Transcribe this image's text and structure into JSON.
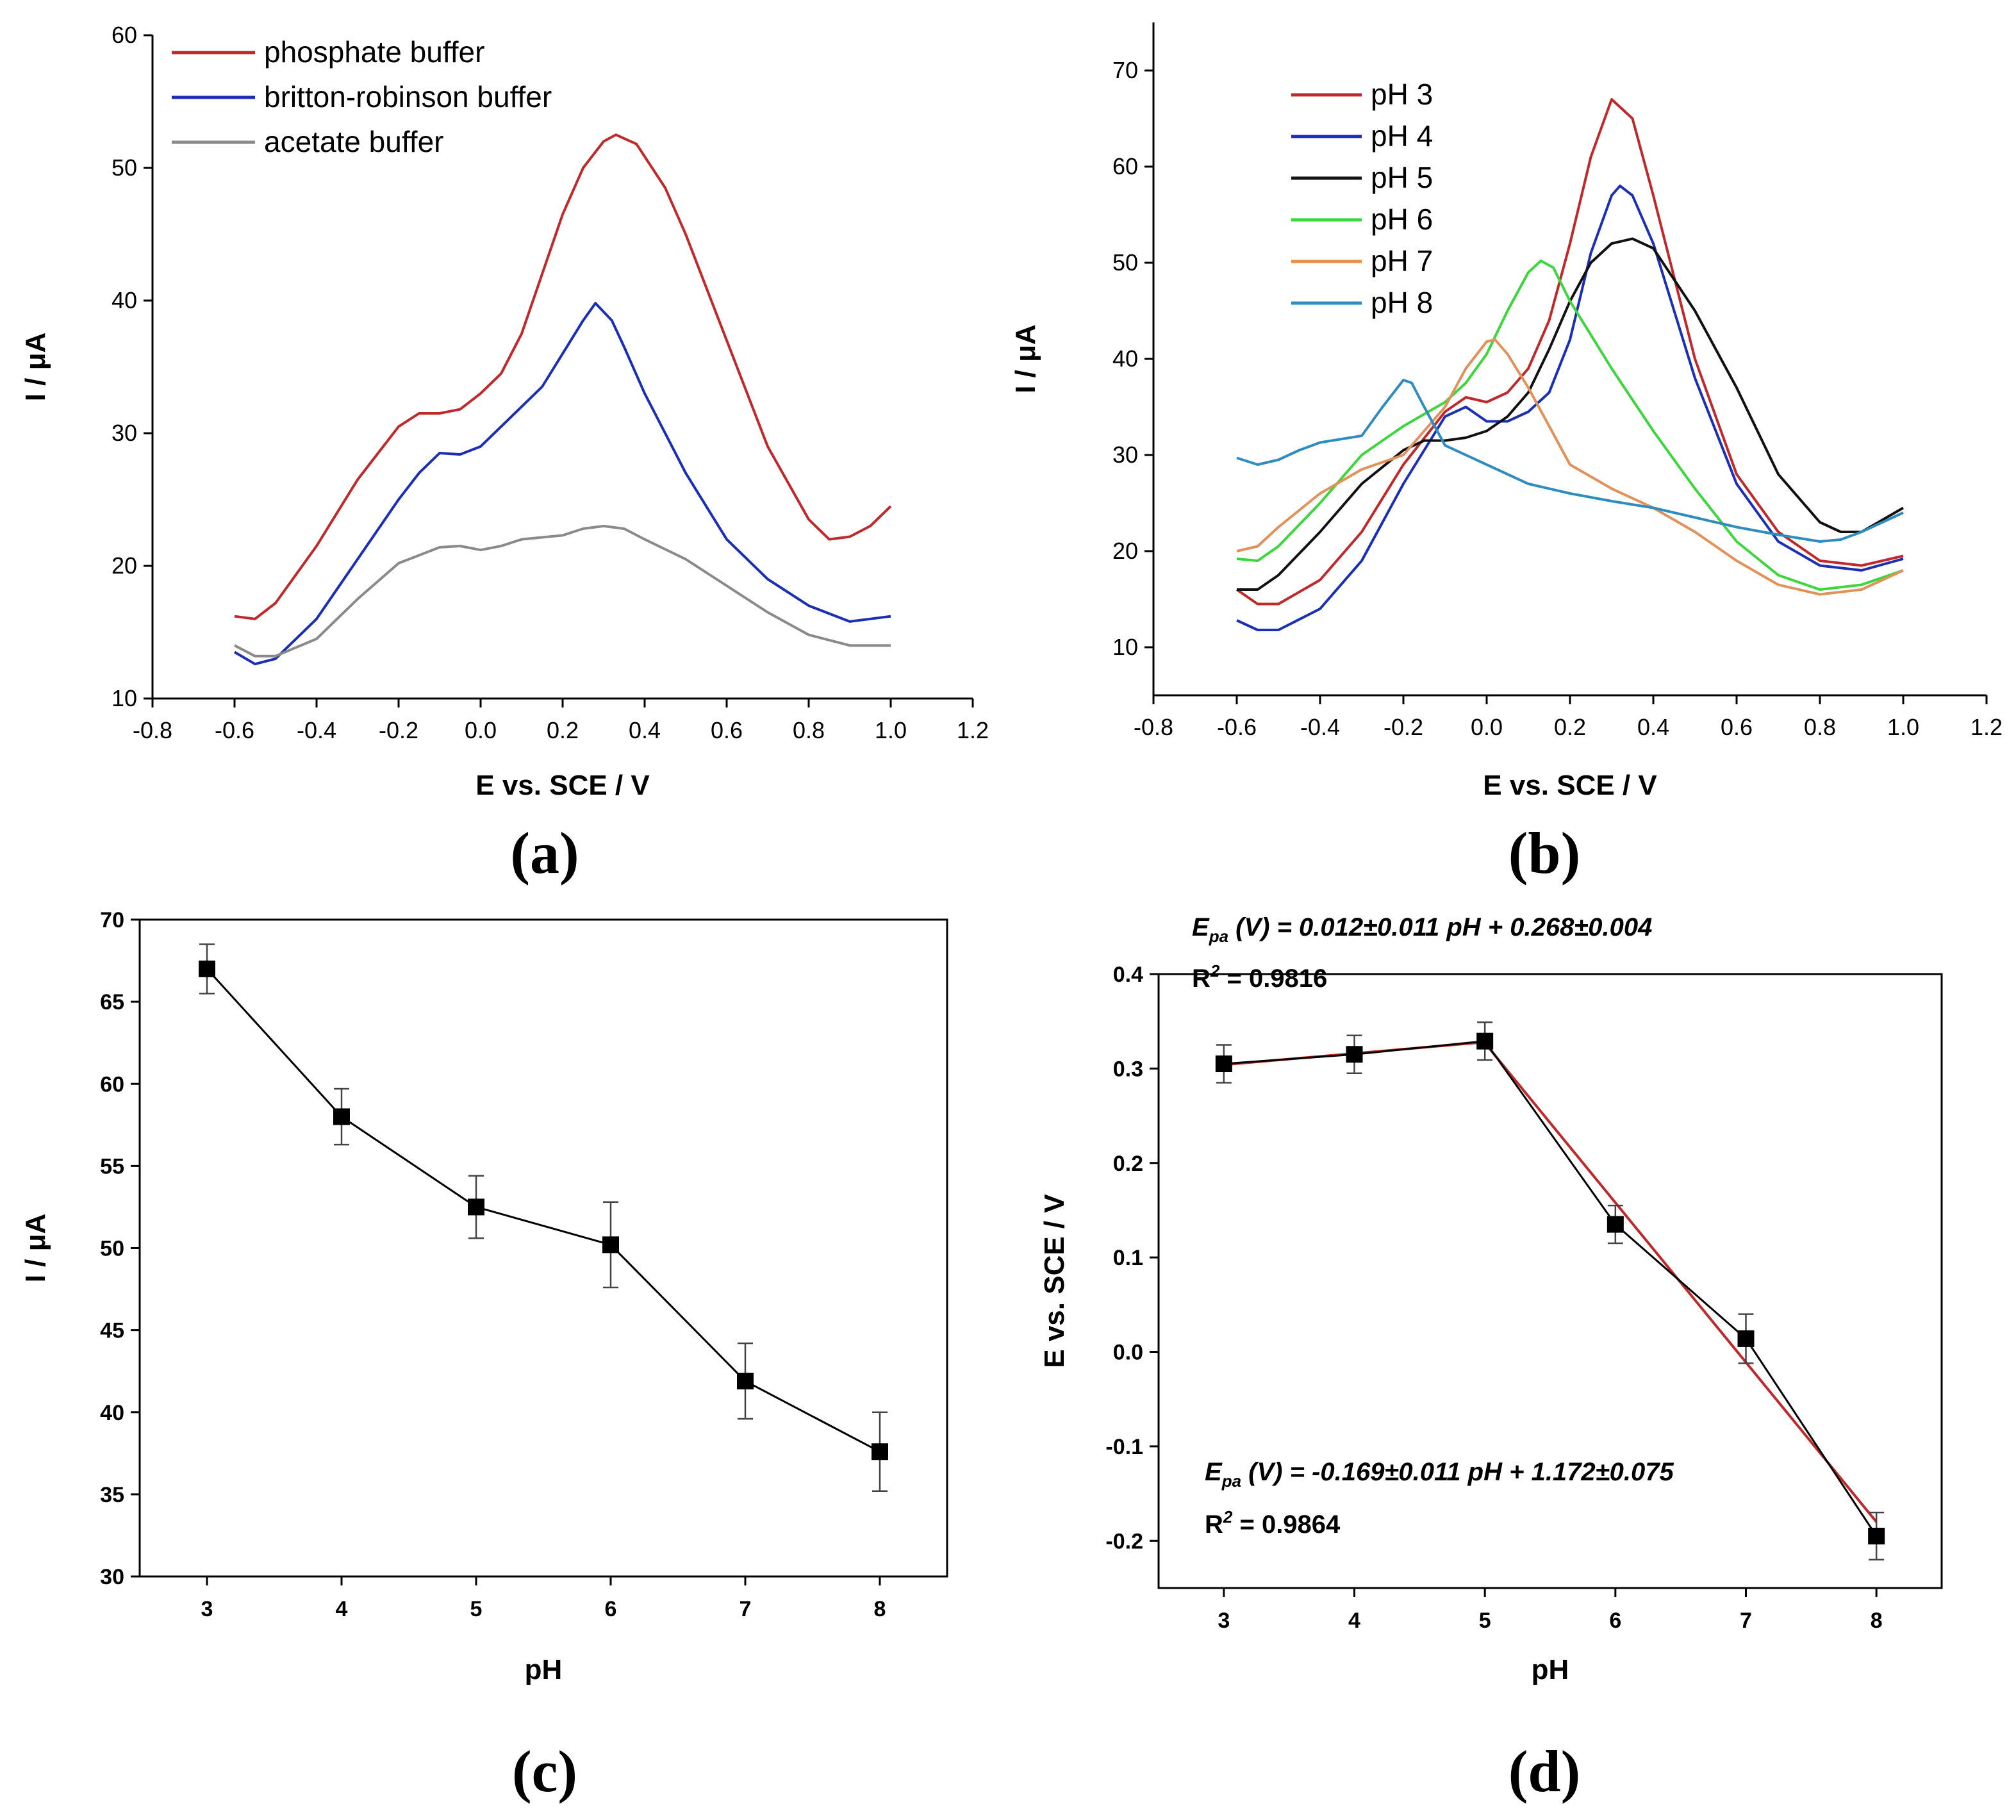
{
  "chart_data": [
    {
      "id": "a",
      "type": "line",
      "panel_label": "(a)",
      "xlabel": "E vs. SCE / V",
      "ylabel": "I / μA",
      "xlim": [
        -0.8,
        1.2
      ],
      "ylim": [
        10,
        60
      ],
      "xticks": [
        "-0.8",
        "-0.6",
        "-0.4",
        "-0.2",
        "0.0",
        "0.2",
        "0.4",
        "0.6",
        "0.8",
        "1.0",
        "1.2"
      ],
      "yticks": [
        "10",
        "20",
        "30",
        "40",
        "50",
        "60"
      ],
      "legend_position": "top-left",
      "series": [
        {
          "name": "phosphate buffer",
          "color": "#c0292b",
          "x": [
            -0.6,
            -0.55,
            -0.5,
            -0.4,
            -0.3,
            -0.2,
            -0.15,
            -0.1,
            -0.05,
            0.0,
            0.05,
            0.1,
            0.15,
            0.2,
            0.25,
            0.3,
            0.33,
            0.38,
            0.45,
            0.5,
            0.6,
            0.7,
            0.8,
            0.85,
            0.9,
            0.95,
            1.0
          ],
          "y": [
            16.2,
            16.0,
            17.2,
            21.5,
            26.5,
            30.5,
            31.5,
            31.5,
            31.8,
            33.0,
            34.5,
            37.5,
            42.0,
            46.5,
            50.0,
            52.0,
            52.5,
            51.8,
            48.5,
            45.0,
            37.0,
            29.0,
            23.5,
            22.0,
            22.2,
            23.0,
            24.5
          ]
        },
        {
          "name": "britton-robinson buffer",
          "color": "#1b2fb5",
          "x": [
            -0.6,
            -0.55,
            -0.5,
            -0.4,
            -0.3,
            -0.2,
            -0.15,
            -0.1,
            -0.05,
            0.0,
            0.05,
            0.1,
            0.15,
            0.2,
            0.25,
            0.28,
            0.32,
            0.35,
            0.4,
            0.5,
            0.6,
            0.7,
            0.8,
            0.9,
            1.0
          ],
          "y": [
            13.5,
            12.6,
            13.0,
            16.0,
            20.5,
            25.0,
            27.0,
            28.5,
            28.4,
            29.0,
            30.5,
            32.0,
            33.5,
            36.0,
            38.5,
            39.8,
            38.5,
            36.5,
            33.0,
            27.0,
            22.0,
            19.0,
            17.0,
            15.8,
            16.2
          ]
        },
        {
          "name": "acetate buffer",
          "color": "#8a8a8a",
          "x": [
            -0.6,
            -0.55,
            -0.5,
            -0.4,
            -0.3,
            -0.2,
            -0.1,
            -0.05,
            0.0,
            0.05,
            0.1,
            0.2,
            0.25,
            0.3,
            0.35,
            0.4,
            0.5,
            0.6,
            0.7,
            0.8,
            0.9,
            1.0
          ],
          "y": [
            14.0,
            13.2,
            13.2,
            14.5,
            17.5,
            20.2,
            21.4,
            21.5,
            21.2,
            21.5,
            22.0,
            22.3,
            22.8,
            23.0,
            22.8,
            22.0,
            20.5,
            18.5,
            16.5,
            14.8,
            14.0,
            14.0
          ]
        }
      ]
    },
    {
      "id": "b",
      "type": "line",
      "panel_label": "(b)",
      "xlabel": "E vs. SCE / V",
      "ylabel": "I / μA",
      "xlim": [
        -0.8,
        1.2
      ],
      "ylim": [
        5,
        75
      ],
      "xticks": [
        "-0.8",
        "-0.6",
        "-0.4",
        "-0.2",
        "0.0",
        "0.2",
        "0.4",
        "0.6",
        "0.8",
        "1.0",
        "1.2"
      ],
      "yticks": [
        "10",
        "20",
        "30",
        "40",
        "50",
        "60",
        "70"
      ],
      "legend_position": "top-left",
      "series": [
        {
          "name": "pH 3",
          "color": "#c0292b",
          "x": [
            -0.6,
            -0.55,
            -0.5,
            -0.4,
            -0.3,
            -0.2,
            -0.1,
            -0.05,
            0.0,
            0.05,
            0.1,
            0.15,
            0.2,
            0.25,
            0.3,
            0.35,
            0.4,
            0.5,
            0.6,
            0.7,
            0.8,
            0.9,
            1.0
          ],
          "y": [
            16.0,
            14.5,
            14.5,
            17.0,
            22.0,
            29.0,
            34.5,
            36.0,
            35.5,
            36.5,
            39.0,
            44.0,
            52.0,
            61.0,
            67.0,
            65.0,
            57.0,
            40.0,
            28.0,
            22.0,
            19.0,
            18.5,
            19.5
          ]
        },
        {
          "name": "pH 4",
          "color": "#1b2fb5",
          "x": [
            -0.6,
            -0.55,
            -0.5,
            -0.4,
            -0.3,
            -0.2,
            -0.1,
            -0.05,
            0.0,
            0.05,
            0.1,
            0.15,
            0.2,
            0.25,
            0.3,
            0.32,
            0.35,
            0.4,
            0.5,
            0.6,
            0.7,
            0.8,
            0.9,
            1.0
          ],
          "y": [
            12.8,
            11.8,
            11.8,
            14.0,
            19.0,
            27.0,
            34.0,
            35.0,
            33.5,
            33.5,
            34.5,
            36.5,
            42.0,
            51.0,
            57.0,
            58.0,
            57.0,
            52.0,
            38.0,
            27.0,
            21.0,
            18.5,
            18.0,
            19.2
          ]
        },
        {
          "name": "pH 5",
          "color": "#111111",
          "x": [
            -0.6,
            -0.55,
            -0.5,
            -0.4,
            -0.3,
            -0.2,
            -0.15,
            -0.1,
            -0.05,
            0.0,
            0.05,
            0.1,
            0.15,
            0.2,
            0.25,
            0.3,
            0.35,
            0.4,
            0.5,
            0.6,
            0.7,
            0.8,
            0.85,
            0.9,
            1.0
          ],
          "y": [
            16.0,
            16.0,
            17.5,
            22.0,
            27.0,
            30.5,
            31.5,
            31.5,
            31.8,
            32.5,
            34.0,
            36.5,
            41.0,
            46.0,
            50.0,
            52.0,
            52.5,
            51.5,
            45.0,
            37.0,
            28.0,
            23.0,
            22.0,
            22.0,
            24.5
          ]
        },
        {
          "name": "pH 6",
          "color": "#3dd63d",
          "x": [
            -0.6,
            -0.55,
            -0.5,
            -0.4,
            -0.3,
            -0.2,
            -0.1,
            -0.05,
            0.0,
            0.05,
            0.1,
            0.13,
            0.16,
            0.2,
            0.3,
            0.4,
            0.5,
            0.6,
            0.7,
            0.8,
            0.9,
            1.0
          ],
          "y": [
            19.2,
            19.0,
            20.5,
            25.0,
            30.0,
            33.0,
            35.5,
            37.5,
            40.5,
            45.0,
            49.0,
            50.2,
            49.5,
            46.0,
            39.0,
            32.5,
            26.5,
            21.0,
            17.5,
            16.0,
            16.5,
            18.0
          ]
        },
        {
          "name": "pH 7",
          "color": "#e0925a",
          "x": [
            -0.6,
            -0.55,
            -0.5,
            -0.4,
            -0.3,
            -0.2,
            -0.1,
            -0.05,
            0.0,
            0.02,
            0.05,
            0.1,
            0.15,
            0.2,
            0.3,
            0.4,
            0.5,
            0.6,
            0.7,
            0.8,
            0.9,
            1.0
          ],
          "y": [
            20.0,
            20.5,
            22.5,
            26.0,
            28.5,
            30.0,
            35.0,
            39.0,
            41.8,
            42.0,
            40.5,
            37.0,
            33.0,
            29.0,
            26.5,
            24.5,
            22.0,
            19.0,
            16.5,
            15.5,
            16.0,
            18.0
          ]
        },
        {
          "name": "pH 8",
          "color": "#2f8cbf",
          "x": [
            -0.6,
            -0.55,
            -0.5,
            -0.45,
            -0.4,
            -0.3,
            -0.25,
            -0.2,
            -0.18,
            -0.15,
            -0.1,
            0.0,
            0.1,
            0.2,
            0.3,
            0.4,
            0.5,
            0.6,
            0.7,
            0.8,
            0.85,
            0.9,
            1.0
          ],
          "y": [
            29.7,
            29.0,
            29.5,
            30.5,
            31.3,
            32.0,
            35.0,
            37.8,
            37.5,
            35.0,
            31.0,
            29.0,
            27.0,
            26.0,
            25.2,
            24.5,
            23.5,
            22.5,
            21.7,
            21.0,
            21.2,
            22.0,
            24.0
          ]
        }
      ]
    },
    {
      "id": "c",
      "type": "scatter",
      "panel_label": "(c)",
      "xlabel": "pH",
      "ylabel": "I / μA",
      "xlim": [
        2.5,
        8.5
      ],
      "ylim": [
        30,
        70
      ],
      "xticks": [
        "3",
        "4",
        "5",
        "6",
        "7",
        "8"
      ],
      "yticks": [
        "30",
        "35",
        "40",
        "45",
        "50",
        "55",
        "60",
        "65",
        "70"
      ],
      "series": [
        {
          "name": "I",
          "color": "#000000",
          "x": [
            3,
            4,
            5,
            6,
            7,
            8
          ],
          "y": [
            67.0,
            58.0,
            52.5,
            50.2,
            41.9,
            37.6
          ],
          "err": [
            1.5,
            1.7,
            1.9,
            2.6,
            2.3,
            2.4
          ]
        }
      ]
    },
    {
      "id": "d",
      "type": "scatter",
      "panel_label": "(d)",
      "xlabel": "pH",
      "ylabel": "E vs. SCE / V",
      "xlim": [
        2.5,
        8.5
      ],
      "ylim": [
        -0.25,
        0.4
      ],
      "xticks": [
        "3",
        "4",
        "5",
        "6",
        "7",
        "8"
      ],
      "yticks": [
        "-0.2",
        "-0.1",
        "0.0",
        "0.1",
        "0.2",
        "0.3",
        "0.4"
      ],
      "series": [
        {
          "name": "Epa",
          "color": "#000000",
          "x": [
            3,
            4,
            5,
            6,
            7,
            8
          ],
          "y": [
            0.305,
            0.315,
            0.329,
            0.135,
            0.014,
            -0.195
          ],
          "err": [
            0.02,
            0.02,
            0.02,
            0.02,
            0.026,
            0.025
          ]
        }
      ],
      "fits": [
        {
          "color": "#c0292b",
          "x": [
            3,
            5
          ],
          "y": [
            0.304,
            0.328
          ]
        },
        {
          "color": "#c0292b",
          "x": [
            5,
            8
          ],
          "y": [
            0.327,
            -0.18
          ]
        }
      ],
      "annotations": [
        {
          "e_letter": "E",
          "subscript": "pa",
          "equation": " (V) = 0.012±0.011 pH + 0.268±0.004",
          "r_label": "R",
          "r_power": "2",
          "r_value": " = 0.9816"
        },
        {
          "e_letter": "E",
          "subscript": "pa",
          "equation": " (V) = -0.169±0.011 pH + 1.172±0.075",
          "r_label": "R",
          "r_power": "2",
          "r_value": " = 0.9864"
        }
      ]
    }
  ]
}
